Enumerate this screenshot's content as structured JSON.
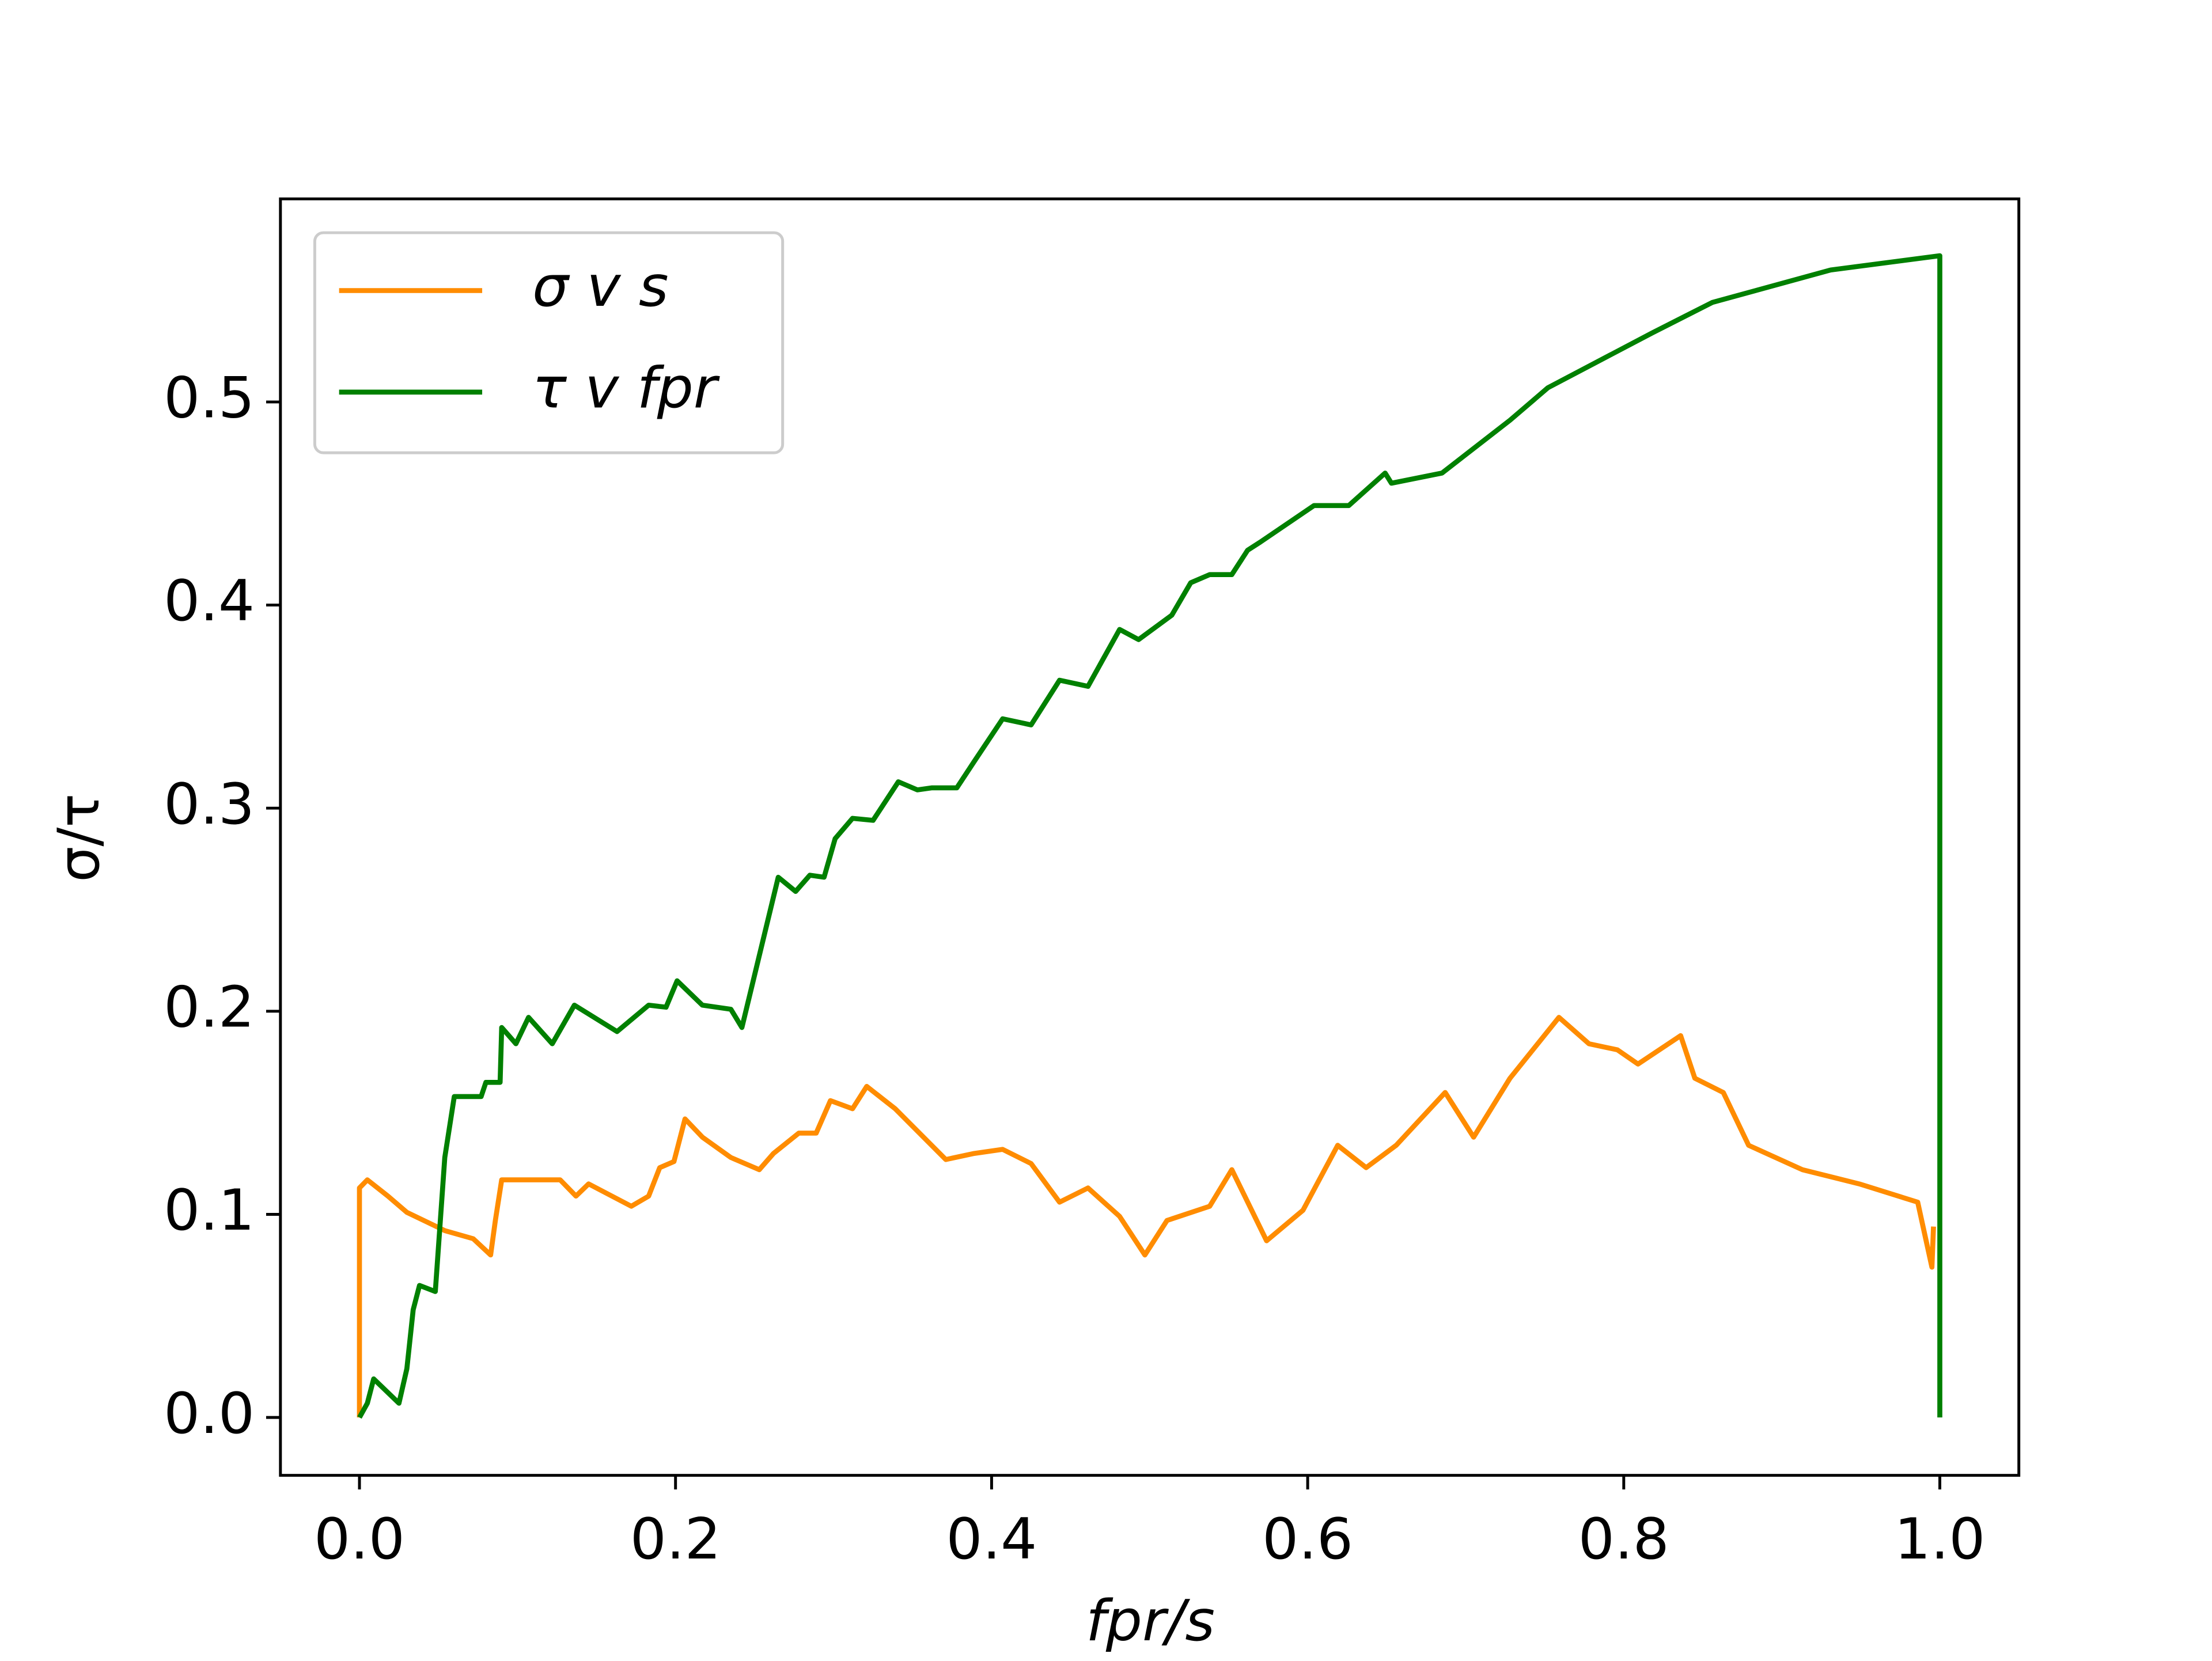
{
  "chart_data": {
    "type": "line",
    "xlabel": "fpr/s",
    "ylabel": "σ/τ",
    "xlim": [
      -0.05,
      1.05
    ],
    "ylim": [
      -0.0285,
      0.6
    ],
    "xticks": [
      {
        "value": 0,
        "label": "0.0"
      },
      0.2,
      0.4,
      0.6,
      0.8,
      {
        "value": 1,
        "label": "1.0"
      }
    ],
    "yticks": [
      {
        "value": 0,
        "label": "0.0"
      },
      0.1,
      0.2,
      0.3,
      0.4,
      0.5
    ],
    "legend": "upper left",
    "series": [
      {
        "name": "σ v s",
        "color": "#ff8c00",
        "x": [
          0,
          0,
          0.005,
          0.018,
          0.03,
          0.054,
          0.072,
          0.083,
          0.086,
          0.09,
          0.127,
          0.137,
          0.145,
          0.172,
          0.183,
          0.19,
          0.199,
          0.206,
          0.217,
          0.235,
          0.253,
          0.262,
          0.278,
          0.289,
          0.298,
          0.312,
          0.321,
          0.339,
          0.371,
          0.389,
          0.407,
          0.425,
          0.443,
          0.461,
          0.481,
          0.497,
          0.511,
          0.538,
          0.552,
          0.574,
          0.597,
          0.619,
          0.637,
          0.656,
          0.687,
          0.705,
          0.728,
          0.759,
          0.778,
          0.796,
          0.809,
          0.836,
          0.845,
          0.863,
          0.879,
          0.913,
          0.949,
          0.986,
          0.995,
          0.996
        ],
        "values": [
          0,
          0.113,
          0.117,
          0.109,
          0.101,
          0.092,
          0.088,
          0.08,
          0.097,
          0.117,
          0.117,
          0.109,
          0.115,
          0.104,
          0.109,
          0.123,
          0.126,
          0.147,
          0.138,
          0.128,
          0.122,
          0.13,
          0.14,
          0.14,
          0.156,
          0.152,
          0.163,
          0.152,
          0.127,
          0.13,
          0.132,
          0.125,
          0.106,
          0.113,
          0.099,
          0.08,
          0.097,
          0.104,
          0.122,
          0.087,
          0.102,
          0.134,
          0.123,
          0.134,
          0.16,
          0.138,
          0.167,
          0.197,
          0.184,
          0.181,
          0.174,
          0.188,
          0.167,
          0.16,
          0.134,
          0.122,
          0.115,
          0.106,
          0.074,
          0.094
        ]
      },
      {
        "name": "τ v fpr",
        "color": "#008000",
        "x": [
          0,
          0.005,
          0.009,
          0.025,
          0.03,
          0.034,
          0.038,
          0.048,
          0.054,
          0.06,
          0.077,
          0.08,
          0.089,
          0.09,
          0.099,
          0.107,
          0.122,
          0.136,
          0.163,
          0.183,
          0.194,
          0.201,
          0.217,
          0.235,
          0.242,
          0.265,
          0.276,
          0.285,
          0.294,
          0.301,
          0.312,
          0.325,
          0.341,
          0.353,
          0.362,
          0.378,
          0.389,
          0.407,
          0.425,
          0.443,
          0.461,
          0.481,
          0.493,
          0.514,
          0.526,
          0.538,
          0.552,
          0.562,
          0.57,
          0.604,
          0.626,
          0.649,
          0.653,
          0.685,
          0.728,
          0.752,
          0.818,
          0.856,
          0.931,
          1.0,
          1.0
        ],
        "values": [
          0,
          0.007,
          0.019,
          0.007,
          0.024,
          0.053,
          0.065,
          0.062,
          0.128,
          0.158,
          0.158,
          0.165,
          0.165,
          0.192,
          0.184,
          0.197,
          0.184,
          0.203,
          0.19,
          0.203,
          0.202,
          0.215,
          0.203,
          0.201,
          0.192,
          0.266,
          0.259,
          0.267,
          0.266,
          0.285,
          0.295,
          0.294,
          0.313,
          0.309,
          0.31,
          0.31,
          0.323,
          0.344,
          0.341,
          0.363,
          0.36,
          0.388,
          0.383,
          0.395,
          0.411,
          0.415,
          0.415,
          0.427,
          0.431,
          0.449,
          0.449,
          0.465,
          0.46,
          0.465,
          0.491,
          0.507,
          0.534,
          0.549,
          0.565,
          0.572,
          0
        ]
      }
    ]
  }
}
